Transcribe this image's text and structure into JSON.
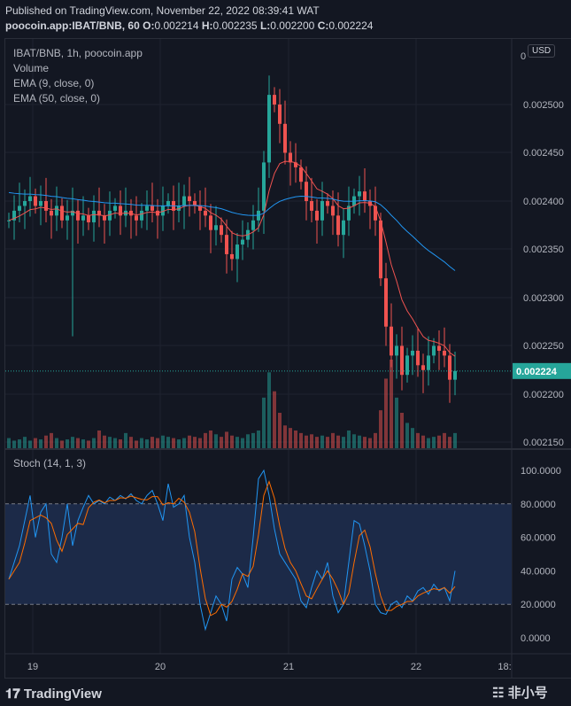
{
  "header": {
    "published": "Published on TradingView.com, November 22, 2022 08:39:41 WAT",
    "symbol": "poocoin.app:IBAT/BNB, 60",
    "o_label": "O:",
    "o": "0.002214",
    "h_label": "H:",
    "h": "0.002235",
    "l_label": "L:",
    "l": "0.002200",
    "c_label": "C:",
    "c": "0.002224"
  },
  "legend": {
    "series": "IBAT/BNB, 1h, poocoin.app",
    "volume": "Volume",
    "ema9": "EMA (9, close, 0)",
    "ema50": "EMA (50, close, 0)",
    "stoch": "Stoch (14, 1, 3)"
  },
  "currency": "USD",
  "footer": {
    "brand": "TradingView",
    "watermark": "非小号"
  },
  "colors": {
    "up": "#26a69a",
    "down": "#ef5350",
    "ema9": "#ef5350",
    "ema50": "#2196f3",
    "k": "#2196f3",
    "d": "#ff6d00",
    "band": "#1c2a48",
    "last": "#26a69a"
  },
  "chart_data": [
    {
      "type": "candlestick",
      "title": "IBAT/BNB, 1h, poocoin.app",
      "x_ticks": [
        "19",
        "20",
        "21",
        "22",
        "18:"
      ],
      "y_ticks": [
        "0",
        "0.002500",
        "0.002450",
        "0.002400",
        "0.002350",
        "0.002300",
        "0.002250",
        "0.002200",
        "0.002150"
      ],
      "last_price": "0.002224",
      "ylim": [
        0.00215,
        0.0025
      ],
      "close": [
        0.00238,
        0.00239,
        0.002395,
        0.0024,
        0.002405,
        0.002395,
        0.0024,
        0.00239,
        0.002385,
        0.002395,
        0.00238,
        0.002385,
        0.00239,
        0.00238,
        0.002385,
        0.002378,
        0.00239,
        0.002385,
        0.00238,
        0.00239,
        0.002395,
        0.002385,
        0.00239,
        0.002385,
        0.00238,
        0.00239,
        0.002395,
        0.00239,
        0.002385,
        0.002395,
        0.0024,
        0.00239,
        0.002395,
        0.002405,
        0.0024,
        0.002395,
        0.00239,
        0.002385,
        0.00237,
        0.002375,
        0.002365,
        0.002345,
        0.00234,
        0.002355,
        0.00236,
        0.00237,
        0.00238,
        0.00239,
        0.00244,
        0.00251,
        0.0025,
        0.00248,
        0.00245,
        0.00244,
        0.002435,
        0.00242,
        0.0024,
        0.00239,
        0.00238,
        0.0024,
        0.002395,
        0.002385,
        0.002365,
        0.00238,
        0.002395,
        0.002405,
        0.00241,
        0.0024,
        0.002395,
        0.00238,
        0.00232,
        0.00227,
        0.00224,
        0.00225,
        0.00222,
        0.00224,
        0.002245,
        0.00223,
        0.002225,
        0.00224,
        0.00225,
        0.002245,
        0.00224,
        0.002215,
        0.002224
      ],
      "volume": [
        8,
        6,
        7,
        9,
        6,
        8,
        7,
        10,
        12,
        8,
        6,
        7,
        9,
        8,
        7,
        6,
        8,
        14,
        10,
        9,
        8,
        7,
        12,
        9,
        6,
        8,
        7,
        9,
        8,
        10,
        9,
        8,
        7,
        8,
        10,
        9,
        8,
        12,
        14,
        11,
        9,
        13,
        10,
        9,
        8,
        11,
        12,
        14,
        40,
        60,
        45,
        28,
        18,
        16,
        14,
        12,
        10,
        11,
        9,
        10,
        9,
        12,
        10,
        9,
        14,
        11,
        10,
        9,
        8,
        12,
        30,
        55,
        70,
        40,
        28,
        20,
        16,
        12,
        10,
        8,
        9,
        10,
        12,
        9,
        12
      ],
      "ema_periods": [
        9,
        50
      ]
    },
    {
      "type": "line",
      "title": "Stoch (14, 1, 3)",
      "y_ticks": [
        "100.0000",
        "80.0000",
        "60.0000",
        "40.0000",
        "20.0000",
        "0.0000"
      ],
      "ylim": [
        -5,
        105
      ],
      "bands": [
        20,
        80
      ],
      "k": [
        35,
        45,
        55,
        70,
        85,
        60,
        75,
        80,
        50,
        45,
        60,
        80,
        55,
        70,
        78,
        85,
        80,
        82,
        80,
        84,
        82,
        85,
        83,
        86,
        82,
        80,
        85,
        88,
        80,
        70,
        92,
        78,
        80,
        85,
        60,
        45,
        20,
        5,
        15,
        25,
        20,
        10,
        35,
        42,
        38,
        30,
        60,
        95,
        100,
        85,
        65,
        50,
        45,
        40,
        35,
        22,
        18,
        30,
        40,
        35,
        45,
        25,
        15,
        20,
        45,
        70,
        68,
        55,
        40,
        20,
        15,
        14,
        20,
        22,
        18,
        25,
        22,
        28,
        30,
        26,
        32,
        28,
        30,
        22,
        40
      ],
      "d_smoothing": 3
    }
  ]
}
